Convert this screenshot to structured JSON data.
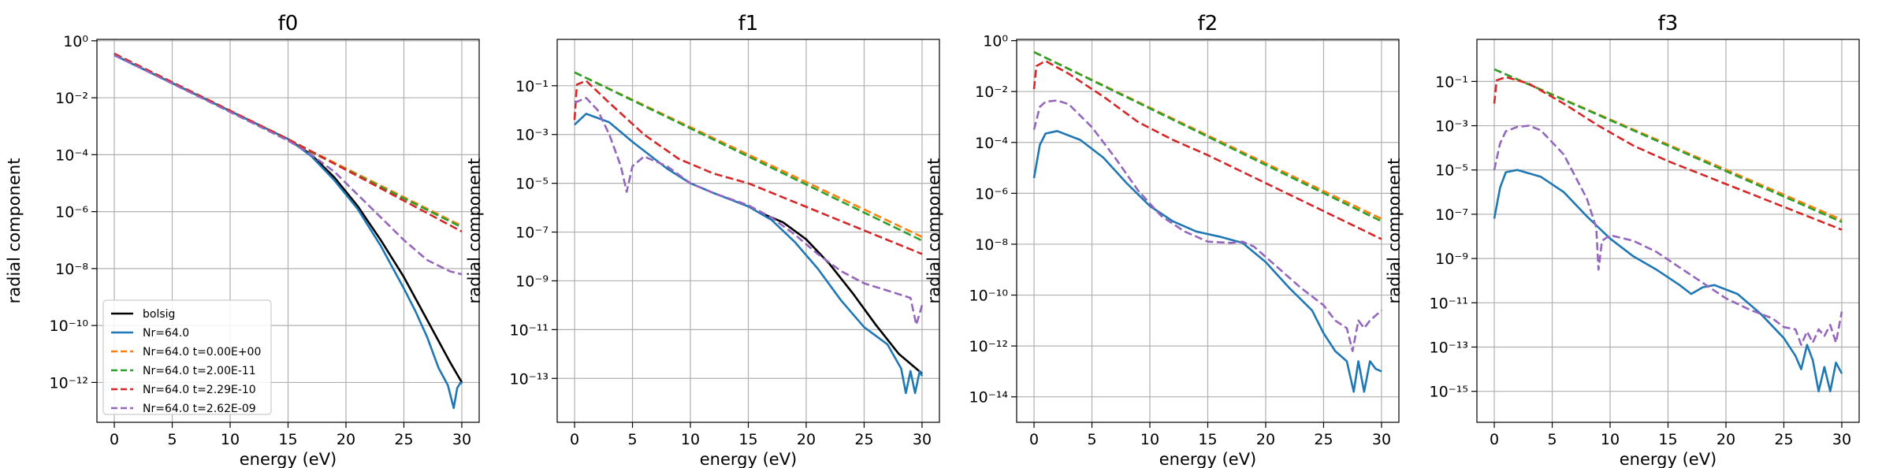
{
  "colors": {
    "bolsig": "#000000",
    "Nr=64.0": "#1f77b4",
    "t0": "#ff7f0e",
    "t1": "#2ca02c",
    "t2": "#d62728",
    "t3": "#9467bd"
  },
  "chart_data": [
    {
      "type": "line",
      "title": "f0",
      "xlabel": "energy (eV)",
      "ylabel": "radial component",
      "xlim": [
        -1.5,
        31.5
      ],
      "ylim_log10": [
        -13.4,
        0.05
      ],
      "yscale": "log",
      "xticks": [
        0,
        5,
        10,
        15,
        20,
        25,
        30
      ],
      "yticks": [
        0,
        -2,
        -4,
        -6,
        -8,
        -10,
        -12
      ],
      "grid": true,
      "legend_location": "lower-left",
      "series": [
        {
          "name": "bolsig",
          "style": "solid",
          "color": "bolsig",
          "x": [
            0,
            15,
            17,
            19,
            21,
            23,
            25,
            27,
            29,
            30
          ],
          "log10_y": [
            -0.5,
            -3.45,
            -4.0,
            -4.8,
            -5.8,
            -7.0,
            -8.3,
            -9.8,
            -11.3,
            -12.0
          ]
        },
        {
          "name": "Nr=64.0",
          "style": "solid",
          "color": "Nr=64.0",
          "x": [
            0,
            15,
            17,
            19,
            21,
            23,
            25,
            26,
            27,
            28,
            28.8,
            29.3,
            29.6,
            29.9,
            30
          ],
          "log10_y": [
            -0.5,
            -3.45,
            -4.05,
            -4.9,
            -5.9,
            -7.2,
            -8.7,
            -9.5,
            -10.4,
            -11.5,
            -12.1,
            -12.9,
            -12.2,
            -12.0,
            -12.05
          ]
        },
        {
          "name": "Nr=64.0 t=0.00E+00",
          "style": "dashed",
          "color": "t0",
          "x": [
            0,
            30
          ],
          "log10_y": [
            -0.45,
            -6.5
          ]
        },
        {
          "name": "Nr=64.0 t=2.00E-11",
          "style": "dashed",
          "color": "t1",
          "x": [
            0,
            30
          ],
          "log10_y": [
            -0.45,
            -6.55
          ]
        },
        {
          "name": "Nr=64.0 t=2.29E-10",
          "style": "dashed",
          "color": "t2",
          "x": [
            0,
            15,
            30
          ],
          "log10_y": [
            -0.45,
            -3.45,
            -6.7
          ]
        },
        {
          "name": "Nr=64.0 t=2.62E-09",
          "style": "dashed",
          "color": "t3",
          "x": [
            0,
            15,
            17,
            19,
            21,
            23,
            25,
            27,
            29,
            30
          ],
          "log10_y": [
            -0.5,
            -3.5,
            -4.0,
            -4.6,
            -5.4,
            -6.2,
            -7.0,
            -7.7,
            -8.1,
            -8.2
          ]
        }
      ]
    },
    {
      "type": "line",
      "title": "f1",
      "xlabel": "energy (eV)",
      "ylabel": "radial component",
      "xlim": [
        -1.5,
        31.5
      ],
      "ylim_log10": [
        -14.8,
        0.9
      ],
      "yscale": "log",
      "xticks": [
        0,
        5,
        10,
        15,
        20,
        25,
        30
      ],
      "yticks": [
        -1,
        -3,
        -5,
        -7,
        -9,
        -11,
        -13
      ],
      "grid": true,
      "series": [
        {
          "name": "bolsig",
          "style": "solid",
          "color": "bolsig",
          "x": [
            16,
            18,
            20,
            22,
            24,
            26,
            28,
            29.5,
            30
          ],
          "log10_y": [
            -6.2,
            -6.6,
            -7.3,
            -8.3,
            -9.5,
            -10.8,
            -12.0,
            -12.6,
            -12.8
          ]
        },
        {
          "name": "Nr=64.0",
          "style": "solid",
          "color": "Nr=64.0",
          "x": [
            0,
            1,
            3,
            5,
            8,
            10,
            12,
            15,
            17,
            19,
            21,
            23,
            25,
            27,
            28.2,
            28.6,
            29.0,
            29.4,
            29.8,
            30
          ],
          "log10_y": [
            -2.6,
            -2.15,
            -2.5,
            -3.3,
            -4.4,
            -5.0,
            -5.4,
            -5.95,
            -6.5,
            -7.4,
            -8.5,
            -9.8,
            -10.9,
            -11.6,
            -12.6,
            -13.6,
            -12.7,
            -13.6,
            -12.7,
            -12.9
          ]
        },
        {
          "name": "Nr=64.0 t=0.00E+00",
          "style": "dashed",
          "color": "t0",
          "x": [
            0,
            30
          ],
          "log10_y": [
            -0.45,
            -7.2
          ]
        },
        {
          "name": "Nr=64.0 t=2.00E-11",
          "style": "dashed",
          "color": "t1",
          "x": [
            0,
            30
          ],
          "log10_y": [
            -0.45,
            -7.35
          ]
        },
        {
          "name": "Nr=64.0 t=2.29E-10",
          "style": "dashed",
          "color": "t2",
          "x": [
            0,
            0.2,
            1,
            3,
            6,
            9,
            12,
            15,
            30
          ],
          "log10_y": [
            -2.4,
            -0.95,
            -0.8,
            -1.7,
            -3.0,
            -4.0,
            -4.6,
            -5.0,
            -7.9
          ]
        },
        {
          "name": "Nr=64.0 t=2.62E-09",
          "style": "dashed",
          "color": "t3",
          "x": [
            0,
            1,
            2,
            3,
            4,
            4.5,
            5,
            6,
            8,
            10,
            12,
            15,
            17,
            19,
            21,
            23,
            25,
            27,
            29,
            29.5,
            30
          ],
          "log10_y": [
            -1.7,
            -1.5,
            -2.0,
            -3.0,
            -4.3,
            -5.35,
            -4.3,
            -3.9,
            -4.3,
            -5.0,
            -5.4,
            -5.9,
            -6.4,
            -7.1,
            -7.9,
            -8.6,
            -9.1,
            -9.4,
            -9.7,
            -10.8,
            -10.0
          ]
        }
      ]
    },
    {
      "type": "line",
      "title": "f2",
      "xlabel": "energy (eV)",
      "ylabel": "radial component",
      "xlim": [
        -1.5,
        31.5
      ],
      "ylim_log10": [
        -15.0,
        0.05
      ],
      "yscale": "log",
      "xticks": [
        0,
        5,
        10,
        15,
        20,
        25,
        30
      ],
      "yticks": [
        0,
        -2,
        -4,
        -6,
        -8,
        -10,
        -12,
        -14
      ],
      "grid": true,
      "series": [
        {
          "name": "Nr=64.0",
          "style": "solid",
          "color": "Nr=64.0",
          "x": [
            0,
            0.5,
            1,
            2,
            4,
            6,
            8,
            10,
            12,
            14,
            16,
            18,
            20,
            22,
            24,
            25,
            26,
            27,
            27.6,
            28,
            28.5,
            29,
            29.5,
            30
          ],
          "log10_y": [
            -5.4,
            -4.1,
            -3.65,
            -3.55,
            -3.9,
            -4.6,
            -5.6,
            -6.5,
            -7.1,
            -7.5,
            -7.7,
            -7.95,
            -8.7,
            -9.7,
            -10.6,
            -11.5,
            -12.2,
            -12.6,
            -13.8,
            -12.6,
            -13.8,
            -12.6,
            -12.9,
            -13.0
          ]
        },
        {
          "name": "Nr=64.0 t=0.00E+00",
          "style": "dashed",
          "color": "t0",
          "x": [
            0,
            30
          ],
          "log10_y": [
            -0.45,
            -7.0
          ]
        },
        {
          "name": "Nr=64.0 t=2.00E-11",
          "style": "dashed",
          "color": "t1",
          "x": [
            0,
            30
          ],
          "log10_y": [
            -0.45,
            -7.1
          ]
        },
        {
          "name": "Nr=64.0 t=2.29E-10",
          "style": "dashed",
          "color": "t2",
          "x": [
            0,
            0.2,
            1,
            3,
            6,
            9,
            12,
            15,
            30
          ],
          "log10_y": [
            -1.9,
            -1.0,
            -0.8,
            -1.3,
            -2.2,
            -3.2,
            -3.9,
            -4.5,
            -7.8
          ]
        },
        {
          "name": "Nr=64.0 t=2.62E-09",
          "style": "dashed",
          "color": "t3",
          "x": [
            0,
            0.5,
            1,
            2,
            3,
            5,
            7,
            9,
            11,
            13,
            15,
            17,
            18,
            19,
            21,
            23,
            25,
            26,
            27,
            27.5,
            28,
            28.5,
            29,
            29.5,
            30
          ],
          "log10_y": [
            -3.5,
            -2.6,
            -2.4,
            -2.35,
            -2.5,
            -3.4,
            -4.6,
            -5.9,
            -6.9,
            -7.5,
            -7.9,
            -7.95,
            -7.9,
            -8.1,
            -8.9,
            -9.7,
            -10.4,
            -11.0,
            -11.3,
            -12.2,
            -11.0,
            -11.3,
            -11.0,
            -10.8,
            -10.6
          ]
        }
      ]
    },
    {
      "type": "line",
      "title": "f3",
      "xlabel": "energy (eV)",
      "ylabel": "radial component",
      "xlim": [
        -1.5,
        31.5
      ],
      "ylim_log10": [
        -16.4,
        0.9
      ],
      "yscale": "log",
      "xticks": [
        0,
        5,
        10,
        15,
        20,
        25,
        30
      ],
      "yticks": [
        -1,
        -3,
        -5,
        -7,
        -9,
        -11,
        -13,
        -15
      ],
      "grid": true,
      "series": [
        {
          "name": "Nr=64.0",
          "style": "solid",
          "color": "Nr=64.0",
          "x": [
            0,
            0.5,
            1,
            2,
            4,
            6,
            8,
            10,
            12,
            14,
            16,
            17,
            18,
            19,
            21,
            23,
            25,
            26,
            26.5,
            27,
            27.5,
            28,
            28.5,
            29,
            29.5,
            30
          ],
          "log10_y": [
            -7.2,
            -5.8,
            -5.1,
            -5.0,
            -5.3,
            -6.0,
            -7.1,
            -8.1,
            -8.9,
            -9.5,
            -10.2,
            -10.6,
            -10.3,
            -10.2,
            -10.6,
            -11.5,
            -12.6,
            -13.4,
            -14.0,
            -12.9,
            -13.6,
            -15.0,
            -13.9,
            -15.0,
            -13.7,
            -14.2
          ]
        },
        {
          "name": "Nr=64.0 t=0.00E+00",
          "style": "dashed",
          "color": "t0",
          "x": [
            0,
            30
          ],
          "log10_y": [
            -0.45,
            -7.25
          ]
        },
        {
          "name": "Nr=64.0 t=2.00E-11",
          "style": "dashed",
          "color": "t1",
          "x": [
            0,
            30
          ],
          "log10_y": [
            -0.45,
            -7.35
          ]
        },
        {
          "name": "Nr=64.0 t=2.29E-10",
          "style": "dashed",
          "color": "t2",
          "x": [
            0,
            0.2,
            1,
            3,
            6,
            9,
            12,
            15,
            30
          ],
          "log10_y": [
            -2.0,
            -0.95,
            -0.8,
            -1.1,
            -2.0,
            -3.0,
            -3.9,
            -4.6,
            -7.7
          ]
        },
        {
          "name": "Nr=64.0 t=2.62E-09",
          "style": "dashed",
          "color": "t3",
          "x": [
            0,
            0.5,
            1,
            2,
            3,
            4,
            6,
            8,
            8.8,
            9,
            9.3,
            10,
            12,
            14,
            16,
            18,
            20,
            22,
            24,
            25,
            26,
            26.5,
            27,
            27.5,
            28,
            28.5,
            29,
            29.5,
            30
          ],
          "log10_y": [
            -5.0,
            -3.8,
            -3.25,
            -3.05,
            -3.0,
            -3.2,
            -4.3,
            -6.3,
            -7.6,
            -9.5,
            -8.2,
            -7.95,
            -8.2,
            -8.7,
            -9.4,
            -10.1,
            -10.8,
            -11.3,
            -11.7,
            -12.1,
            -12.2,
            -12.9,
            -12.3,
            -12.8,
            -12.2,
            -12.5,
            -12.0,
            -12.8,
            -11.4
          ]
        }
      ]
    }
  ]
}
